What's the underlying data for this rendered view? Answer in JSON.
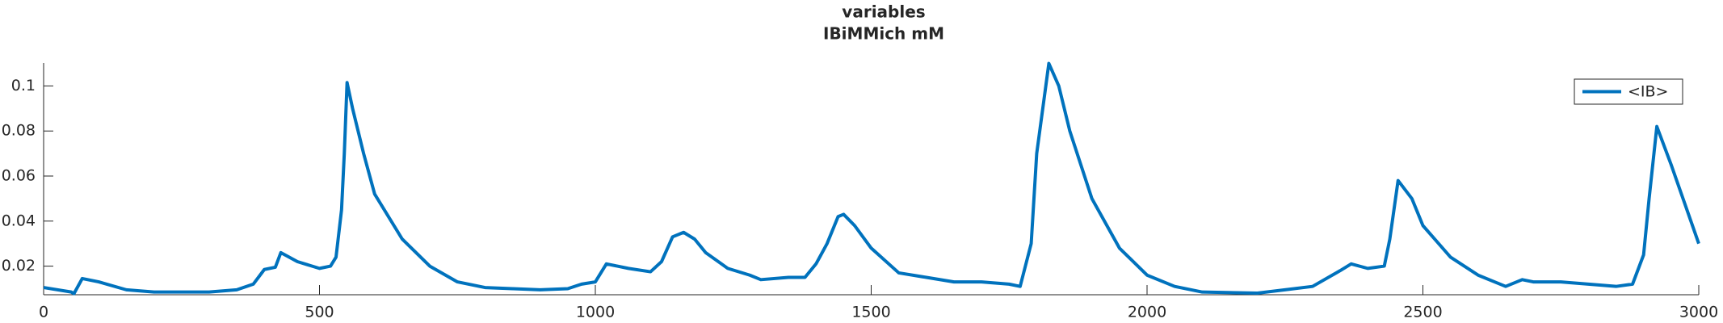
{
  "chart_data": {
    "type": "line",
    "title": "variables",
    "subtitle": "IBiMMich mM",
    "x": [
      0,
      50,
      55,
      70,
      100,
      150,
      200,
      300,
      350,
      380,
      400,
      420,
      430,
      460,
      500,
      520,
      530,
      540,
      545,
      550,
      560,
      580,
      600,
      650,
      700,
      750,
      800,
      850,
      900,
      950,
      975,
      1000,
      1020,
      1040,
      1060,
      1100,
      1120,
      1140,
      1160,
      1180,
      1200,
      1240,
      1280,
      1300,
      1350,
      1380,
      1400,
      1420,
      1440,
      1450,
      1470,
      1500,
      1550,
      1600,
      1650,
      1700,
      1750,
      1770,
      1790,
      1800,
      1822,
      1840,
      1860,
      1900,
      1950,
      2000,
      2050,
      2100,
      2200,
      2250,
      2300,
      2350,
      2370,
      2400,
      2430,
      2440,
      2455,
      2480,
      2500,
      2550,
      2600,
      2650,
      2680,
      2700,
      2750,
      2800,
      2850,
      2880,
      2900,
      2910,
      2924,
      2950,
      3000
    ],
    "series": [
      {
        "name": "<IB>",
        "color": "#0072bd",
        "values": [
          0.0105,
          0.0085,
          0.0078,
          0.0145,
          0.013,
          0.0095,
          0.0085,
          0.0085,
          0.0095,
          0.012,
          0.0185,
          0.0195,
          0.026,
          0.022,
          0.019,
          0.02,
          0.024,
          0.045,
          0.07,
          0.1015,
          0.09,
          0.07,
          0.052,
          0.032,
          0.02,
          0.013,
          0.0105,
          0.01,
          0.0095,
          0.01,
          0.012,
          0.013,
          0.021,
          0.02,
          0.019,
          0.0175,
          0.022,
          0.033,
          0.035,
          0.032,
          0.026,
          0.019,
          0.016,
          0.014,
          0.015,
          0.015,
          0.021,
          0.03,
          0.042,
          0.043,
          0.038,
          0.028,
          0.017,
          0.015,
          0.013,
          0.013,
          0.012,
          0.011,
          0.03,
          0.07,
          0.11,
          0.1,
          0.08,
          0.05,
          0.028,
          0.016,
          0.011,
          0.0085,
          0.008,
          0.0095,
          0.011,
          0.018,
          0.021,
          0.019,
          0.02,
          0.032,
          0.058,
          0.05,
          0.038,
          0.024,
          0.016,
          0.011,
          0.014,
          0.013,
          0.013,
          0.012,
          0.011,
          0.012,
          0.025,
          0.05,
          0.082,
          0.065,
          0.03
        ]
      }
    ],
    "xlim": [
      0,
      3000
    ],
    "xticks": [
      0,
      500,
      1000,
      1500,
      2000,
      2500,
      3000
    ],
    "ylim": [
      0.0073,
      0.1102
    ],
    "yticks": [
      0.02,
      0.04,
      0.06,
      0.08,
      0.1
    ],
    "legend": "top-right"
  }
}
